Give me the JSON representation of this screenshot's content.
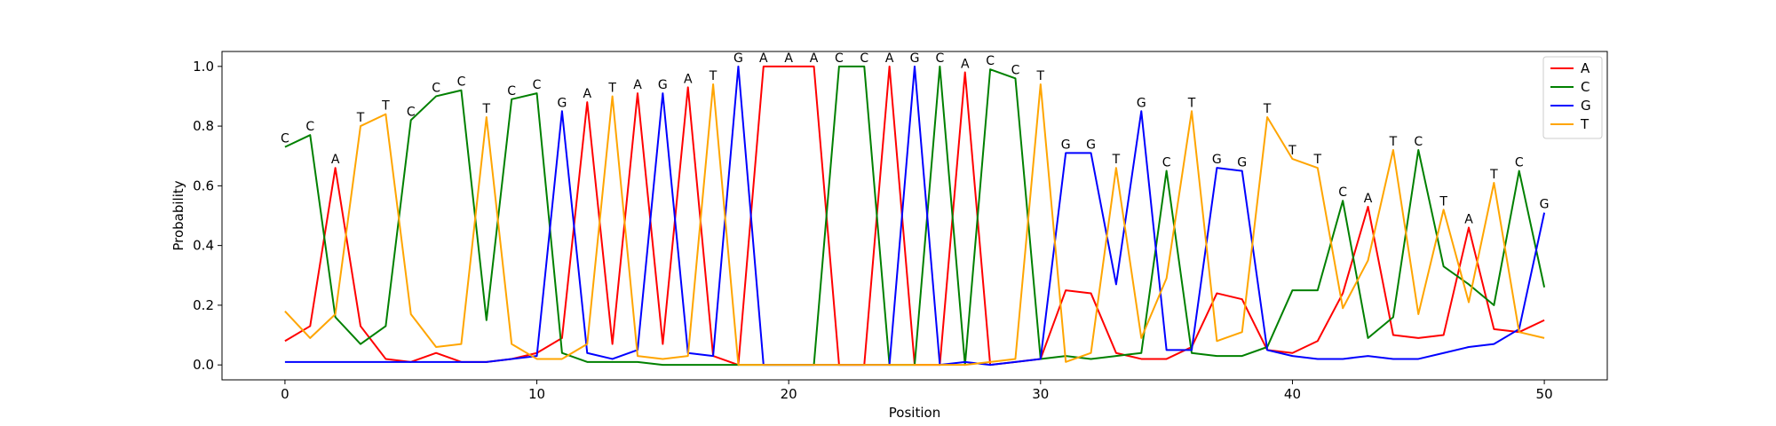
{
  "chart_data": {
    "type": "line",
    "title": "",
    "xlabel": "Position",
    "ylabel": "Probability",
    "xlim": [
      -2.5,
      52.5
    ],
    "ylim": [
      -0.05,
      1.05
    ],
    "xticks": [
      0,
      10,
      20,
      30,
      40,
      50
    ],
    "yticks": [
      0.0,
      0.2,
      0.4,
      0.6,
      0.8,
      1.0
    ],
    "xtick_labels": [
      "0",
      "10",
      "20",
      "30",
      "40",
      "50"
    ],
    "ytick_labels": [
      "0.0",
      "0.2",
      "0.4",
      "0.6",
      "0.8",
      "1.0"
    ],
    "grid": false,
    "legend_position": "top-right",
    "x": [
      0,
      1,
      2,
      3,
      4,
      5,
      6,
      7,
      8,
      9,
      10,
      11,
      12,
      13,
      14,
      15,
      16,
      17,
      18,
      19,
      20,
      21,
      22,
      23,
      24,
      25,
      26,
      27,
      28,
      29,
      30,
      31,
      32,
      33,
      34,
      35,
      36,
      37,
      38,
      39,
      40,
      41,
      42,
      43,
      44,
      45,
      46,
      47,
      48,
      49,
      50
    ],
    "series": [
      {
        "name": "A",
        "color": "#ff0000",
        "values": [
          0.08,
          0.13,
          0.66,
          0.13,
          0.02,
          0.01,
          0.04,
          0.01,
          0.01,
          0.02,
          0.04,
          0.09,
          0.88,
          0.07,
          0.91,
          0.07,
          0.93,
          0.03,
          0.0,
          1.0,
          1.0,
          1.0,
          0.0,
          0.0,
          1.0,
          0.0,
          0.0,
          0.98,
          0.0,
          0.01,
          0.02,
          0.25,
          0.24,
          0.04,
          0.02,
          0.02,
          0.06,
          0.24,
          0.22,
          0.05,
          0.04,
          0.08,
          0.24,
          0.53,
          0.1,
          0.09,
          0.1,
          0.46,
          0.12,
          0.11,
          0.15
        ]
      },
      {
        "name": "C",
        "color": "#008000",
        "values": [
          0.73,
          0.77,
          0.16,
          0.07,
          0.13,
          0.82,
          0.9,
          0.92,
          0.15,
          0.89,
          0.91,
          0.04,
          0.01,
          0.01,
          0.01,
          0.0,
          0.0,
          0.0,
          0.0,
          0.0,
          0.0,
          0.0,
          1.0,
          1.0,
          0.0,
          0.0,
          1.0,
          0.0,
          0.99,
          0.96,
          0.02,
          0.03,
          0.02,
          0.03,
          0.04,
          0.65,
          0.04,
          0.03,
          0.03,
          0.06,
          0.25,
          0.25,
          0.55,
          0.09,
          0.16,
          0.72,
          0.33,
          0.27,
          0.2,
          0.65,
          0.26
        ]
      },
      {
        "name": "G",
        "color": "#0000ff",
        "values": [
          0.01,
          0.01,
          0.01,
          0.01,
          0.01,
          0.01,
          0.01,
          0.01,
          0.01,
          0.02,
          0.03,
          0.85,
          0.04,
          0.02,
          0.05,
          0.91,
          0.04,
          0.03,
          1.0,
          0.0,
          0.0,
          0.0,
          0.0,
          0.0,
          0.0,
          1.0,
          0.0,
          0.01,
          0.0,
          0.01,
          0.02,
          0.71,
          0.71,
          0.27,
          0.85,
          0.05,
          0.05,
          0.66,
          0.65,
          0.05,
          0.03,
          0.02,
          0.02,
          0.03,
          0.02,
          0.02,
          0.04,
          0.06,
          0.07,
          0.12,
          0.51
        ]
      },
      {
        "name": "T",
        "color": "#ffa500",
        "values": [
          0.18,
          0.09,
          0.17,
          0.8,
          0.84,
          0.17,
          0.06,
          0.07,
          0.83,
          0.07,
          0.02,
          0.02,
          0.07,
          0.9,
          0.03,
          0.02,
          0.03,
          0.94,
          0.0,
          0.0,
          0.0,
          0.0,
          0.0,
          0.0,
          0.0,
          0.0,
          0.0,
          0.0,
          0.01,
          0.02,
          0.94,
          0.01,
          0.04,
          0.66,
          0.09,
          0.29,
          0.85,
          0.08,
          0.11,
          0.83,
          0.69,
          0.66,
          0.19,
          0.35,
          0.72,
          0.17,
          0.52,
          0.21,
          0.61,
          0.11,
          0.09
        ]
      }
    ],
    "max_labels": [
      "C",
      "C",
      "A",
      "T",
      "T",
      "C",
      "C",
      "C",
      "T",
      "C",
      "C",
      "G",
      "A",
      "T",
      "A",
      "G",
      "A",
      "T",
      "G",
      "A",
      "A",
      "A",
      "C",
      "C",
      "A",
      "G",
      "C",
      "A",
      "C",
      "C",
      "T",
      "G",
      "G",
      "T",
      "G",
      "C",
      "T",
      "G",
      "G",
      "T",
      "T",
      "T",
      "C",
      "A",
      "T",
      "C",
      "T",
      "A",
      "T",
      "C",
      "G"
    ]
  }
}
